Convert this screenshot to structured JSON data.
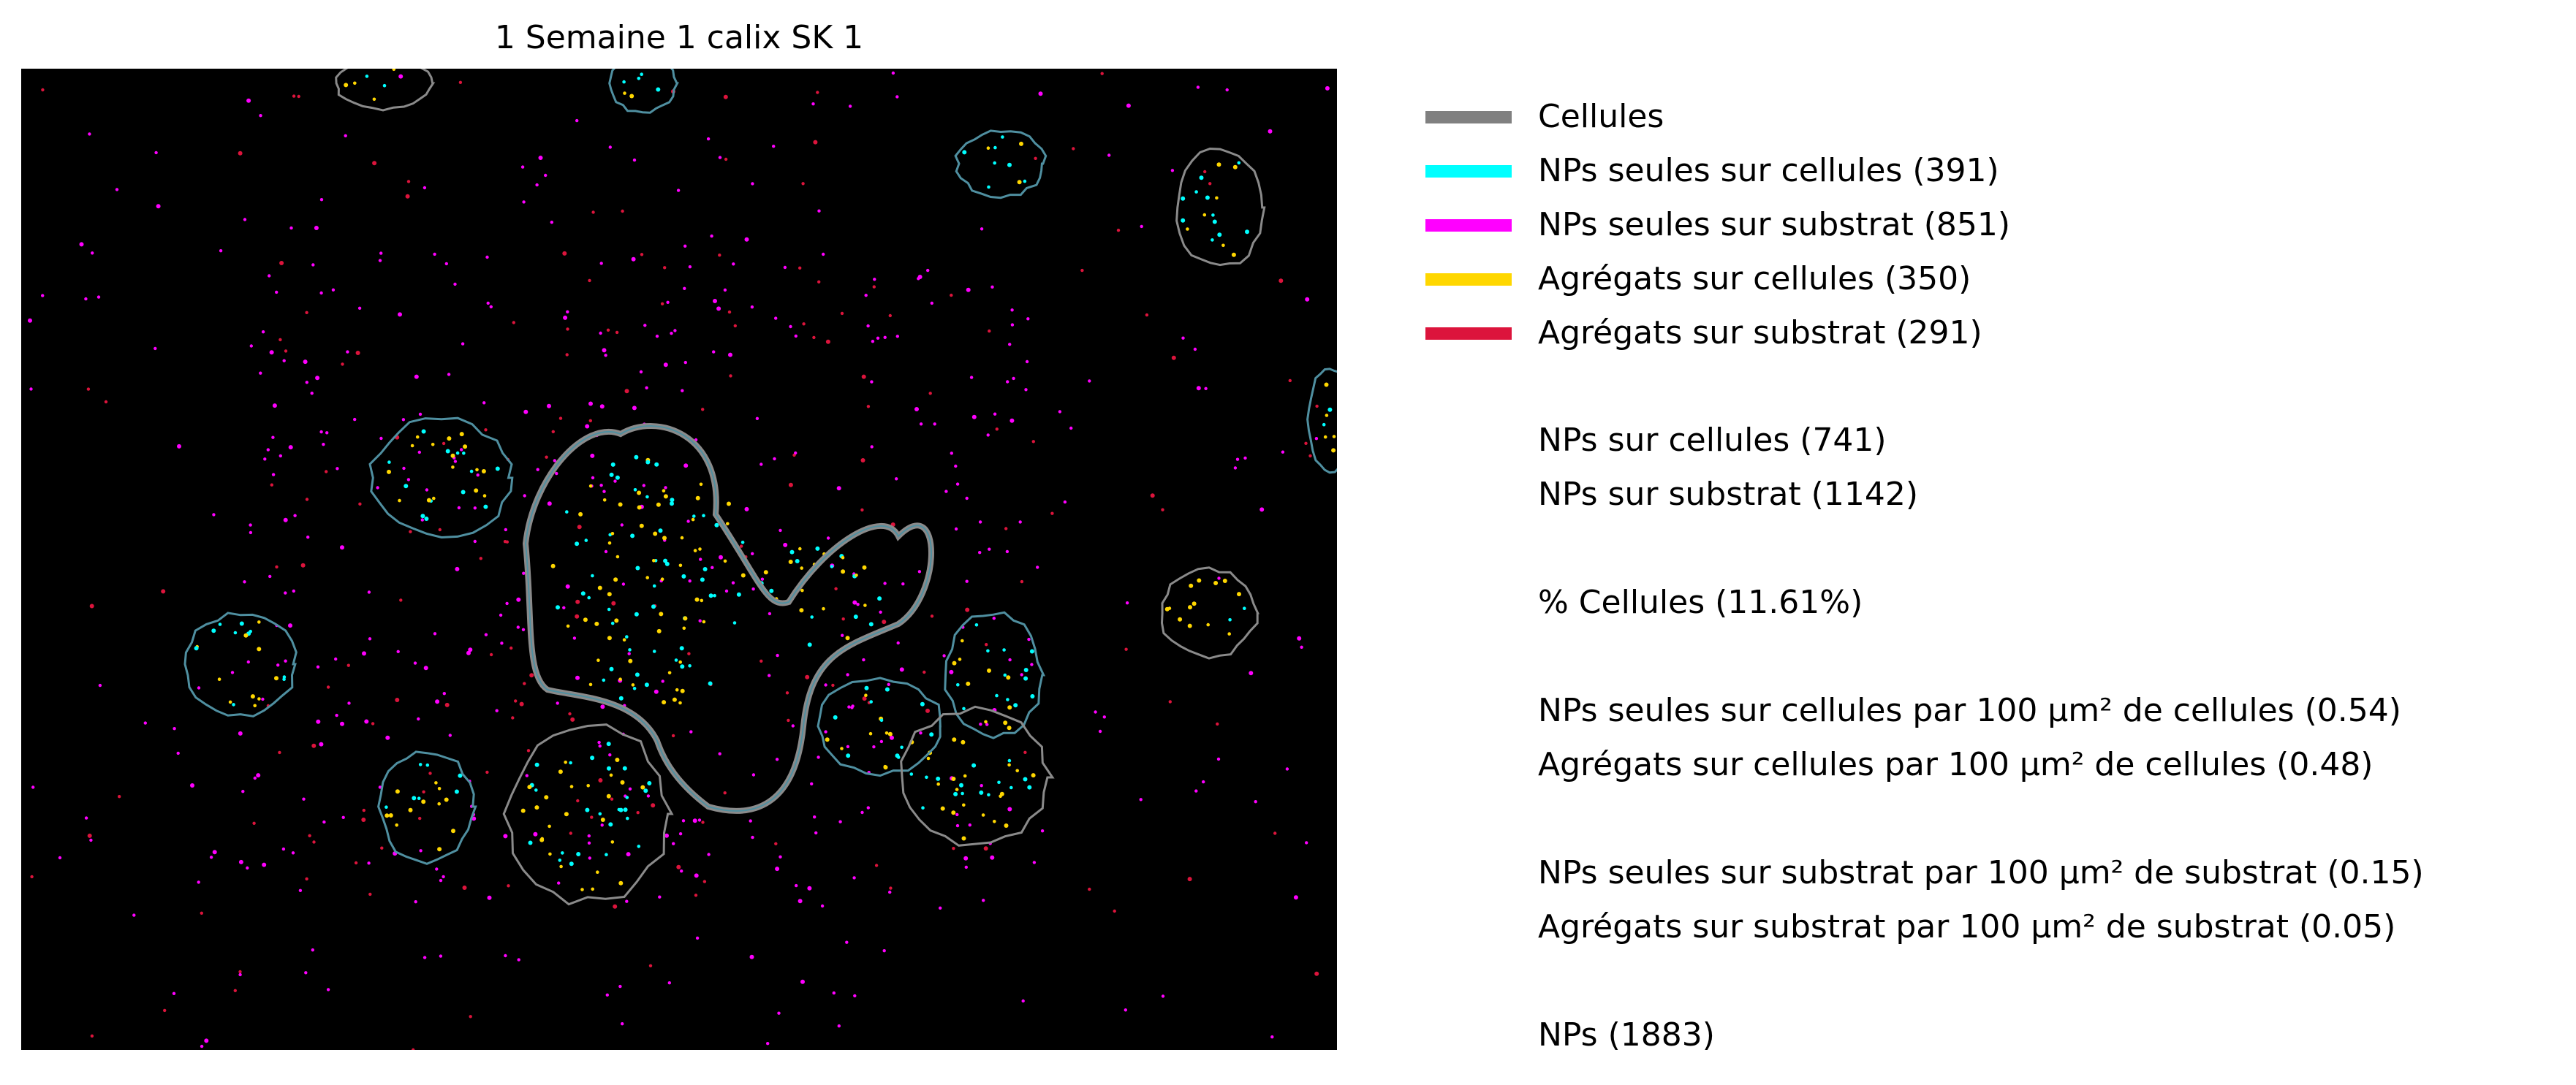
{
  "title": "1 Semaine 1 calix SK 1",
  "legend": [
    {
      "label": "Cellules",
      "color": "#808080"
    },
    {
      "label": "NPs seules sur cellules (391)",
      "color": "#00ffff"
    },
    {
      "label": "NPs seules sur substrat (851)",
      "color": "#ff00ff"
    },
    {
      "label": "Agrégats sur cellules (350)",
      "color": "#ffd700"
    },
    {
      "label": "Agrégats sur substrat (291)",
      "color": "#dc143c"
    }
  ],
  "stats": {
    "nps_on_cells": "NPs sur cellules (741)",
    "nps_on_substrate": "NPs sur substrat (1142)",
    "percent_cells": "% Cellules (11.61%)",
    "single_on_cells_density": "NPs seules sur cellules par 100 µm² de cellules (0.54)",
    "agg_on_cells_density": "Agrégats sur cellules par 100 µm² de cellules (0.48)",
    "single_on_substrate_density": "NPs seules sur substrat par 100 µm² de substrat (0.15)",
    "agg_on_substrate_density": "Agrégats sur substrat par 100 µm² de substrat (0.05)",
    "total_nps": "NPs (1883)"
  },
  "image": {
    "background": "#000000",
    "outline_color": "#4f8fa0",
    "dense_outline_color": "#8a8a8a"
  }
}
